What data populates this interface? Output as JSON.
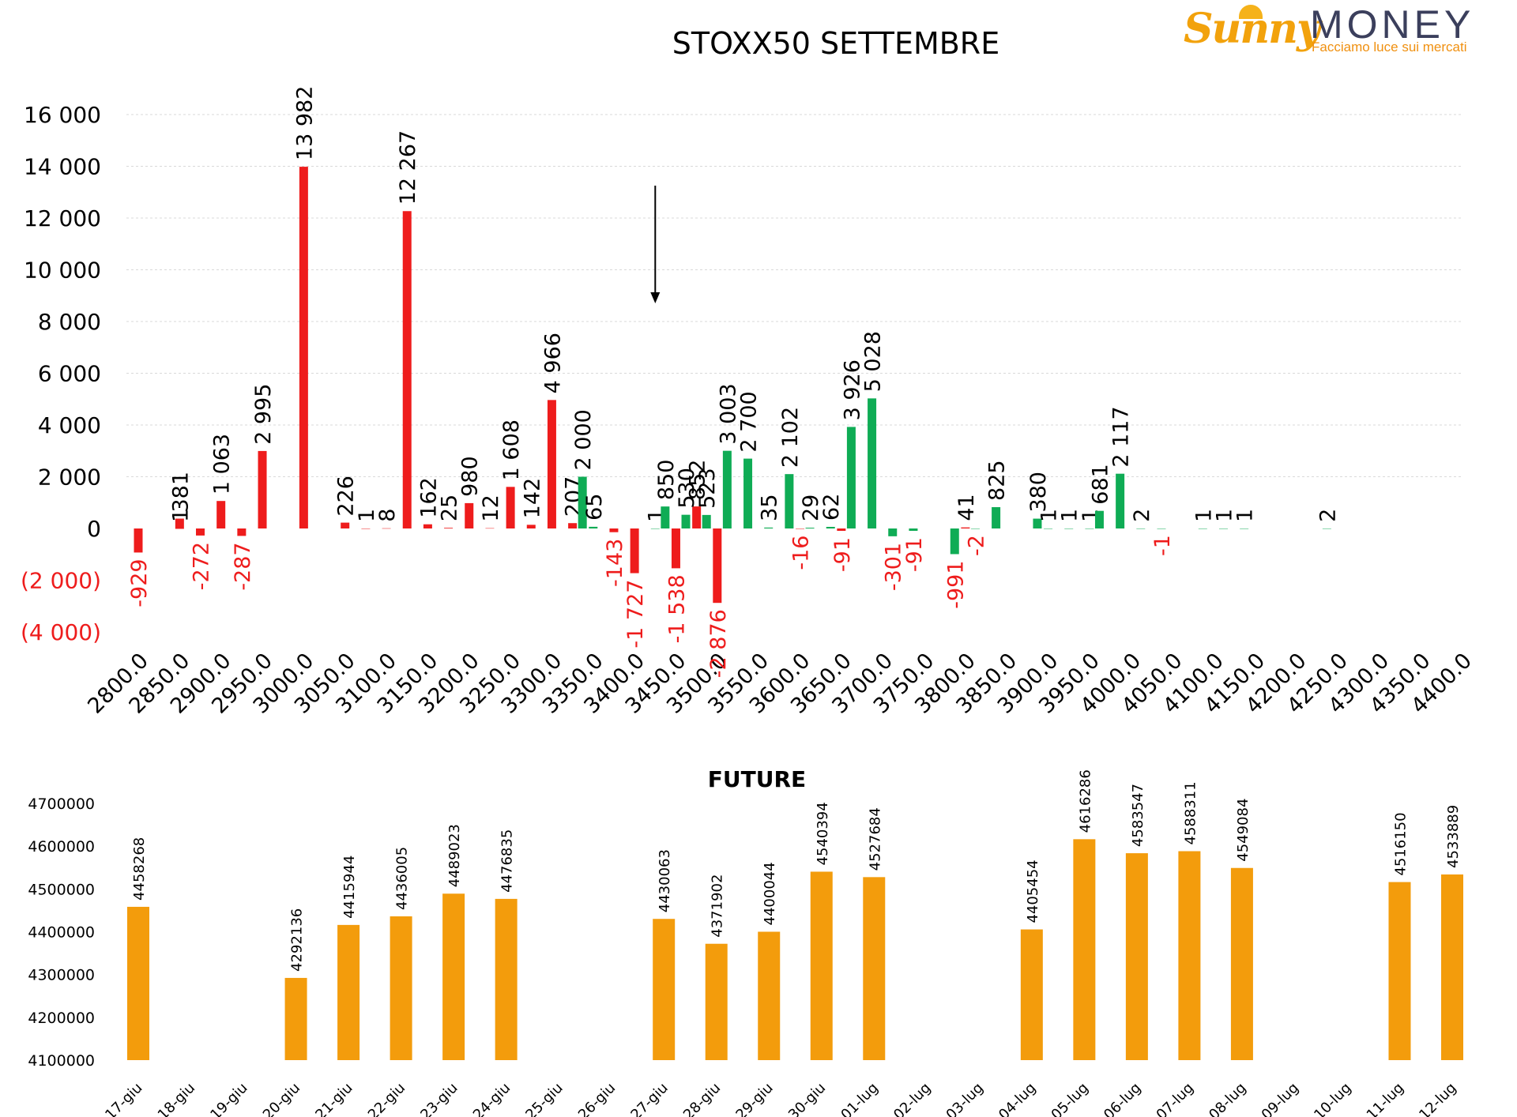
{
  "logo": {
    "brand_part1": "Sunny",
    "brand_part2": "MONEY",
    "tagline": "Facciamo luce sui mercati"
  },
  "colors": {
    "red": "#ee1c1c",
    "green": "#0fac55",
    "orange": "#f39c0c",
    "axis_text": "#000000",
    "negative_text": "#ee1c1c",
    "grid": "#d9d9d9"
  },
  "chart_data": [
    {
      "type": "bar",
      "title": "STOXX50 SETTEMBRE",
      "xlabel": "",
      "ylabel": "",
      "ylim": [
        -4000,
        16000
      ],
      "y_ticks": [
        16000,
        14000,
        12000,
        10000,
        8000,
        6000,
        4000,
        2000,
        0,
        -2000,
        -4000
      ],
      "y_tick_labels": [
        "16 000",
        "14 000",
        "12 000",
        "10 000",
        "8 000",
        "6 000",
        "4 000",
        "2 000",
        "0",
        "(2 000)",
        "(4 000)"
      ],
      "x_ticks": [
        2800,
        2850,
        2900,
        2950,
        3000,
        3050,
        3100,
        3150,
        3200,
        3250,
        3300,
        3350,
        3400,
        3450,
        3500,
        3550,
        3600,
        3650,
        3700,
        3750,
        3800,
        3850,
        3900,
        3950,
        4000,
        4050,
        4100,
        4150,
        4200,
        4250,
        4300,
        4350,
        4400
      ],
      "x_tick_labels": [
        "2800.0",
        "2850.0",
        "2900.0",
        "2950.0",
        "3000.0",
        "3050.0",
        "3100.0",
        "3150.0",
        "3200.0",
        "3250.0",
        "3300.0",
        "3350.0",
        "3400.0",
        "3450.0",
        "3500.0",
        "3550.0",
        "3600.0",
        "3650.0",
        "3700.0",
        "3750.0",
        "3800.0",
        "3850.0",
        "3900.0",
        "3950.0",
        "4000.0",
        "4050.0",
        "4100.0",
        "4150.0",
        "4200.0",
        "4250.0",
        "4300.0",
        "4350.0",
        "4400.0"
      ],
      "grid": true,
      "arrow_marker_strike": 3425,
      "series": [
        {
          "color_key": "red",
          "points": [
            {
              "x": 2800,
              "value": -929,
              "label": "-929"
            },
            {
              "x": 2850,
              "value": 1,
              "label": "1"
            },
            {
              "x": 2850,
              "value": 381,
              "label": "381"
            },
            {
              "x": 2875,
              "value": -272,
              "label": "-272"
            },
            {
              "x": 2900,
              "value": 1063,
              "label": "1 063"
            },
            {
              "x": 2925,
              "value": -287,
              "label": "-287"
            },
            {
              "x": 2950,
              "value": 2995,
              "label": "2 995"
            },
            {
              "x": 3000,
              "value": 13982,
              "label": "13 982"
            },
            {
              "x": 3050,
              "value": 226,
              "label": "226"
            },
            {
              "x": 3075,
              "value": 1,
              "label": "1"
            },
            {
              "x": 3100,
              "value": 8,
              "label": "8"
            },
            {
              "x": 3125,
              "value": 12267,
              "label": "12 267"
            },
            {
              "x": 3150,
              "value": 162,
              "label": "162"
            },
            {
              "x": 3175,
              "value": 25,
              "label": "25"
            },
            {
              "x": 3200,
              "value": 980,
              "label": "980"
            },
            {
              "x": 3225,
              "value": 12,
              "label": "12"
            },
            {
              "x": 3250,
              "value": 1608,
              "label": "1 608"
            },
            {
              "x": 3275,
              "value": 142,
              "label": "142"
            },
            {
              "x": 3300,
              "value": 4966,
              "label": "4 966"
            },
            {
              "x": 3325,
              "value": 207,
              "label": "207"
            },
            {
              "x": 3375,
              "value": -143,
              "label": "-143"
            },
            {
              "x": 3400,
              "value": -1727,
              "label": "-1 727"
            },
            {
              "x": 3450,
              "value": -1538,
              "label": "-1 538"
            },
            {
              "x": 3475,
              "value": 852,
              "label": "852"
            },
            {
              "x": 3500,
              "value": -2876,
              "label": "-2 876"
            },
            {
              "x": 3600,
              "value": -16,
              "label": "-16"
            },
            {
              "x": 3650,
              "value": -91,
              "label": "-91"
            },
            {
              "x": 3800,
              "value": 41,
              "label": "41"
            }
          ]
        },
        {
          "color_key": "green",
          "points": [
            {
              "x": 3337,
              "value": 2000,
              "label": "2 000"
            },
            {
              "x": 3350,
              "value": 65,
              "label": "65"
            },
            {
              "x": 3425,
              "value": 1,
              "label": "1"
            },
            {
              "x": 3437,
              "value": 850,
              "label": "850"
            },
            {
              "x": 3462,
              "value": 530,
              "label": "530"
            },
            {
              "x": 3487,
              "value": 523,
              "label": "523"
            },
            {
              "x": 3512,
              "value": 3003,
              "label": "3 003"
            },
            {
              "x": 3537,
              "value": 2700,
              "label": "2 700"
            },
            {
              "x": 3562,
              "value": 35,
              "label": "35"
            },
            {
              "x": 3587,
              "value": 2102,
              "label": "2 102"
            },
            {
              "x": 3612,
              "value": 29,
              "label": "29"
            },
            {
              "x": 3637,
              "value": 62,
              "label": "62"
            },
            {
              "x": 3662,
              "value": 3926,
              "label": "3 926"
            },
            {
              "x": 3687,
              "value": 5028,
              "label": "5 028"
            },
            {
              "x": 3712,
              "value": -301,
              "label": "-301"
            },
            {
              "x": 3737,
              "value": -91,
              "label": "-91"
            },
            {
              "x": 3787,
              "value": -991,
              "label": "-991"
            },
            {
              "x": 3812,
              "value": -2,
              "label": "-2"
            },
            {
              "x": 3837,
              "value": 825,
              "label": "825"
            },
            {
              "x": 3887,
              "value": 380,
              "label": "380"
            },
            {
              "x": 3900,
              "value": 1,
              "label": "1"
            },
            {
              "x": 3925,
              "value": 1,
              "label": "1"
            },
            {
              "x": 3950,
              "value": 1,
              "label": "1"
            },
            {
              "x": 3962,
              "value": 681,
              "label": "681"
            },
            {
              "x": 3987,
              "value": 2117,
              "label": "2 117"
            },
            {
              "x": 4012,
              "value": 2,
              "label": "2"
            },
            {
              "x": 4037,
              "value": -1,
              "label": "-1"
            },
            {
              "x": 4087,
              "value": 1,
              "label": "1"
            },
            {
              "x": 4112,
              "value": 1,
              "label": "1"
            },
            {
              "x": 4137,
              "value": 1,
              "label": "1"
            },
            {
              "x": 4237,
              "value": 2,
              "label": "2"
            }
          ]
        }
      ]
    },
    {
      "type": "bar",
      "title": "FUTURE",
      "xlabel": "",
      "ylabel": "",
      "ylim": [
        4100000,
        4700000
      ],
      "y_ticks": [
        4100000,
        4200000,
        4300000,
        4400000,
        4500000,
        4600000,
        4700000
      ],
      "y_tick_labels": [
        "4100000",
        "4200000",
        "4300000",
        "4400000",
        "4500000",
        "4600000",
        "4700000"
      ],
      "grid": false,
      "categories": [
        "17-giu",
        "18-giu",
        "19-giu",
        "20-giu",
        "21-giu",
        "22-giu",
        "23-giu",
        "24-giu",
        "25-giu",
        "26-giu",
        "27-giu",
        "28-giu",
        "29-giu",
        "30-giu",
        "01-lug",
        "02-lug",
        "03-lug",
        "04-lug",
        "05-lug",
        "06-lug",
        "07-lug",
        "08-lug",
        "09-lug",
        "10-lug",
        "11-lug",
        "12-lug"
      ],
      "values": [
        4458268,
        null,
        null,
        4292136,
        4415944,
        4436005,
        4489023,
        4476835,
        null,
        null,
        4430063,
        4371902,
        4400044,
        4540394,
        4527684,
        null,
        null,
        4405454,
        4616286,
        4583547,
        4588311,
        4549084,
        null,
        null,
        4516150,
        4533889
      ],
      "value_labels": [
        "4458268",
        "",
        "",
        "4292136",
        "4415944",
        "4436005",
        "4489023",
        "4476835",
        "",
        "",
        "4430063",
        "4371902",
        "4400044",
        "4540394",
        "4527684",
        "",
        "",
        "4405454",
        "4616286",
        "4583547",
        "4588311",
        "4549084",
        "",
        "",
        "4516150",
        "4533889"
      ]
    }
  ]
}
